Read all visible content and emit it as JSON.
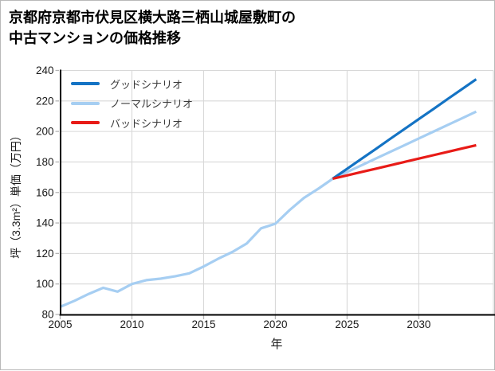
{
  "title": {
    "line1": "京都府京都市伏見区横大路三栖山城屋敷町の",
    "line2": "中古マンションの価格推移"
  },
  "chart_data": {
    "type": "line",
    "title": "京都府京都市伏見区横大路三栖山城屋敷町の中古マンションの価格推移",
    "xlabel": "年",
    "ylabel": "坪（3.3m²）単価（万円）",
    "xlim": [
      2005,
      2035.2
    ],
    "ylim": [
      80,
      240
    ],
    "x_ticks": [
      2005,
      2010,
      2015,
      2020,
      2025,
      2030
    ],
    "y_ticks": [
      80,
      100,
      120,
      140,
      160,
      180,
      200,
      220,
      240
    ],
    "grid": true,
    "legend_position": "upper-left",
    "colors": {
      "grid": "#d8d8d8",
      "spine": "#000000",
      "tick": "#b5b5b5",
      "good": "#1473c4",
      "normal": "#a6cef2",
      "bad": "#e81b17"
    },
    "series": [
      {
        "name": "グッドシナリオ",
        "color": "#1473c4",
        "zorder": 2,
        "x": [
          2024,
          2025,
          2026,
          2027,
          2028,
          2029,
          2030,
          2031,
          2032,
          2033,
          2034
        ],
        "values": [
          169,
          175.5,
          182,
          188.5,
          195.1,
          201.6,
          208.1,
          214.6,
          221.2,
          227.7,
          234.2
        ]
      },
      {
        "name": "ノーマルシナリオ",
        "color": "#a6cef2",
        "zorder": 1,
        "x": [
          2005,
          2006,
          2007,
          2008,
          2009,
          2010,
          2011,
          2012,
          2013,
          2014,
          2015,
          2016,
          2017,
          2018,
          2019,
          2020,
          2021,
          2022,
          2023,
          2024,
          2025,
          2026,
          2027,
          2028,
          2029,
          2030,
          2031,
          2032,
          2033,
          2034
        ],
        "values": [
          85,
          89,
          93.5,
          97.5,
          95,
          100,
          102.5,
          103.5,
          105,
          107,
          111.5,
          116.5,
          121,
          126.5,
          136.5,
          139.5,
          148.5,
          156.5,
          162.5,
          169,
          173.4,
          177.8,
          182.2,
          186.6,
          191,
          195.4,
          199.8,
          204.2,
          208.6,
          213
        ]
      },
      {
        "name": "バッドシナリオ",
        "color": "#e81b17",
        "zorder": 3,
        "x": [
          2024,
          2025,
          2026,
          2027,
          2028,
          2029,
          2030,
          2031,
          2032,
          2033,
          2034
        ],
        "values": [
          169,
          171.2,
          173.4,
          175.6,
          177.8,
          180,
          182.2,
          184.4,
          186.6,
          188.8,
          191
        ]
      }
    ]
  }
}
